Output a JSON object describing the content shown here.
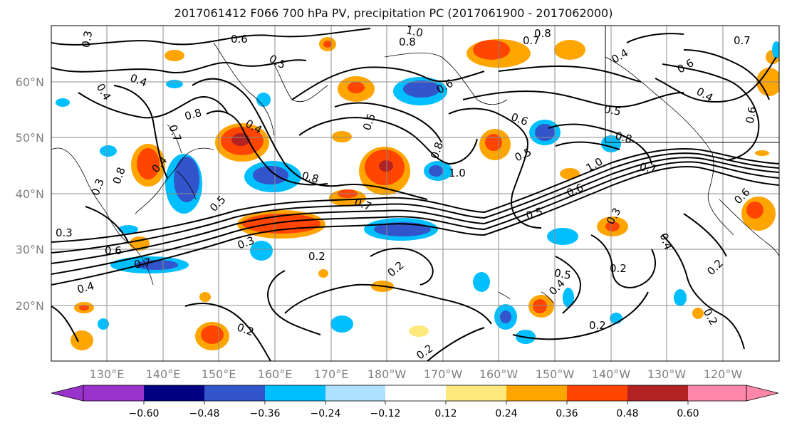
{
  "title": "2017061412 F066 700 hPa PV, precipitation PC (2017061900 - 2017062000)",
  "map": {
    "lat_labels": [
      "60°N",
      "50°N",
      "40°N",
      "30°N",
      "20°N"
    ],
    "lon_labels": [
      "130°E",
      "140°E",
      "150°E",
      "160°E",
      "170°E",
      "180°W",
      "170°W",
      "160°W",
      "150°W",
      "140°W",
      "130°W",
      "120°W"
    ],
    "extent": {
      "lon": [
        120,
        250
      ],
      "lat": [
        10,
        70
      ]
    },
    "gridlines": true,
    "contour_color": "#000000",
    "contour_labels": [
      "0.3",
      "0.6",
      "1.0",
      "0.8",
      "0.7",
      "0.8",
      "0.4",
      "0.7",
      "0.5",
      "0.4",
      "0.4",
      "0.6",
      "0.6",
      "0.8",
      "0.5",
      "0.4",
      "0.5",
      "0.7",
      "0.8",
      "0.6",
      "0.6",
      "0.4",
      "0.5",
      "0.8",
      "0.4",
      "0.8",
      "1.0",
      "0.7",
      "1.0",
      "0.5",
      "0.3",
      "0.8",
      "0.7",
      "0.6",
      "0.5",
      "0.3",
      "0.3",
      "0.6",
      "0.7",
      "0.4",
      "0.2",
      "0.2",
      "0.4",
      "0.3",
      "0.2",
      "0.5",
      "0.4",
      "0.2",
      "0.2",
      "0.2",
      "0.2",
      "0.2",
      "0.6"
    ]
  },
  "colorbar": {
    "ticks": [
      "−0.60",
      "−0.48",
      "−0.36",
      "−0.24",
      "−0.12",
      "0.12",
      "0.24",
      "0.36",
      "0.48",
      "0.60"
    ],
    "colors": [
      "#9933cc",
      "#000080",
      "#3355cc",
      "#00bfff",
      "#aee0ff",
      "#ffffff",
      "#ffe97f",
      "#ffa500",
      "#ff4500",
      "#b22222",
      "#ff88aa"
    ]
  },
  "legend_colors": {
    "neg_strong": "#3355cc",
    "neg_mid": "#00bfff",
    "neg_weak": "#aee0ff",
    "pos_weak": "#ffe97f",
    "pos_mid": "#ffa500",
    "pos_strong": "#ff4500",
    "pos_max": "#b22222"
  }
}
